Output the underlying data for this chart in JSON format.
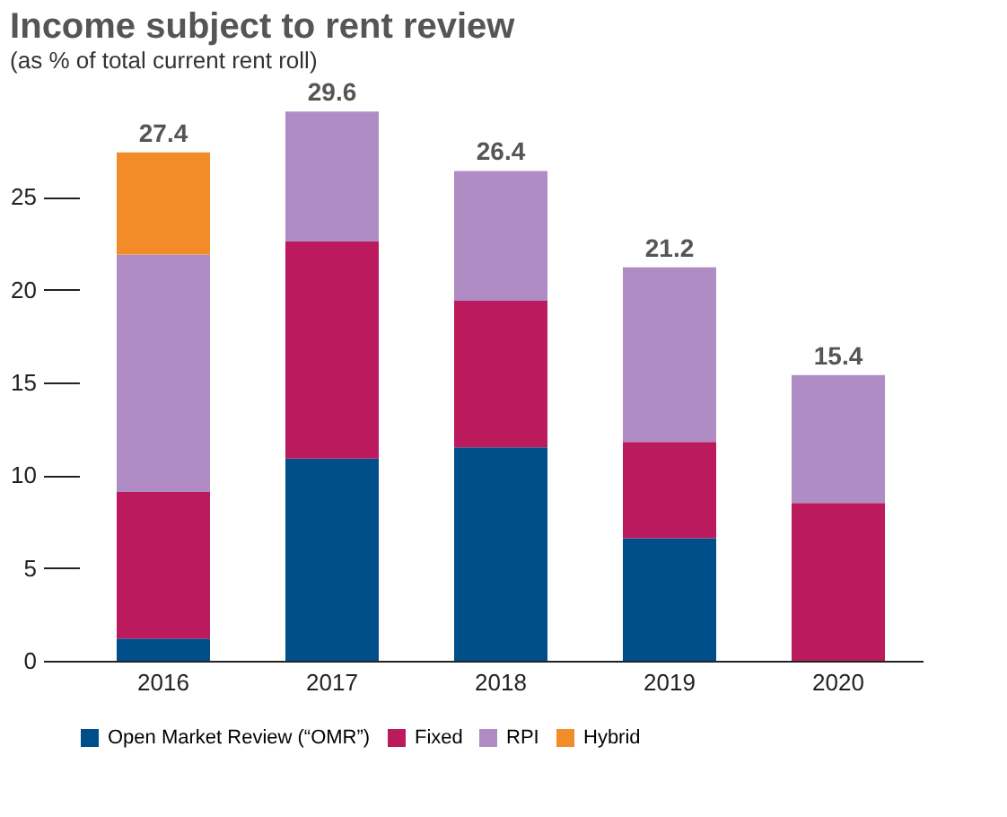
{
  "chart_data": {
    "type": "bar",
    "title": "Income subject to rent review",
    "subtitle": "(as % of total current rent roll)",
    "categories": [
      "2016",
      "2017",
      "2018",
      "2019",
      "2020"
    ],
    "stacked": true,
    "series": [
      {
        "name": "Open Market Review (“OMR”)",
        "color": "#004f8b",
        "values": [
          1.2,
          10.9,
          11.5,
          6.6,
          null
        ]
      },
      {
        "name": "Fixed",
        "color": "#bb1a5c",
        "values": [
          7.9,
          11.7,
          7.9,
          5.2,
          8.5
        ]
      },
      {
        "name": "RPI",
        "color": "#b08cc4",
        "values": [
          12.8,
          7.0,
          7.0,
          9.4,
          6.9
        ]
      },
      {
        "name": "Hybrid",
        "color": "#f28c28",
        "values": [
          5.5,
          null,
          null,
          null,
          null
        ]
      }
    ],
    "totals": [
      "27.4",
      "29.6",
      "26.4",
      "21.2",
      "15.4"
    ],
    "ylim": [
      0,
      30
    ],
    "yticks": [
      0,
      5,
      10,
      15,
      20,
      25
    ],
    "grid": false,
    "legend": "bottom"
  }
}
